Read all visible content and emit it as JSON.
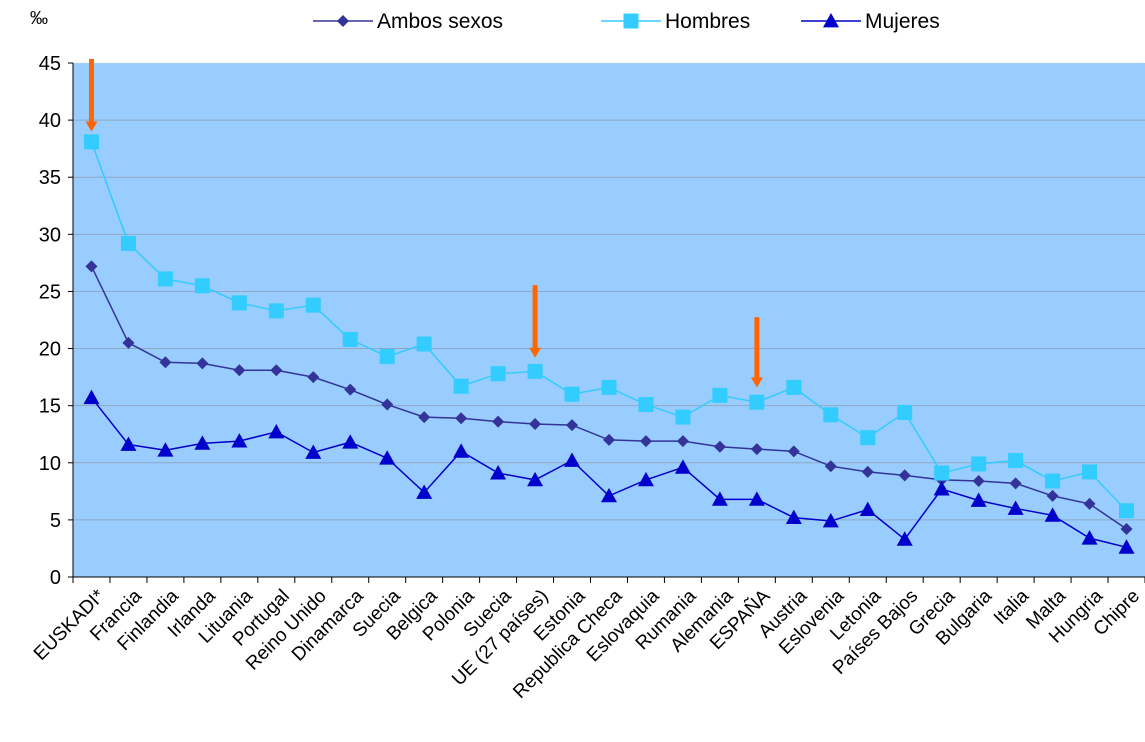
{
  "chart_data": {
    "type": "line",
    "ylabel": "‰",
    "ylim": [
      0,
      45
    ],
    "yticks": [
      0,
      5,
      10,
      15,
      20,
      25,
      30,
      35,
      40,
      45
    ],
    "grid": true,
    "legend_position": "top",
    "plot_background": "#99ccff",
    "categories": [
      "EUSKADI*",
      "Francia",
      "Finlandia",
      "Irlanda",
      "Lituania",
      "Portugal",
      "Reino Unido",
      "Dinamarca",
      "Suecia",
      "Belgica",
      "Polonia",
      "Suecia",
      "UE (27 países)",
      "Estonia",
      "Republica Checa",
      "Eslovaquia",
      "Rumania",
      "Alemania",
      "ESPAÑA",
      "Austria",
      "Eslovenia",
      "Letonia",
      "Países Bajos",
      "Grecia",
      "Bulgaria",
      "Italia",
      "Malta",
      "Hungria",
      "Chipre"
    ],
    "series": [
      {
        "name": "Ambos sexos",
        "color": "#333399",
        "marker": "diamond",
        "values": [
          27.2,
          20.5,
          18.8,
          18.7,
          18.1,
          18.1,
          17.5,
          16.4,
          15.1,
          14.0,
          13.9,
          13.6,
          13.4,
          13.3,
          12.0,
          11.9,
          11.9,
          11.4,
          11.2,
          11.0,
          9.7,
          9.2,
          8.9,
          8.5,
          8.4,
          8.2,
          7.1,
          6.4,
          4.2
        ]
      },
      {
        "name": "Hombres",
        "color": "#33ccff",
        "marker": "square",
        "values": [
          38.1,
          29.2,
          26.1,
          25.5,
          24.0,
          23.3,
          23.8,
          20.8,
          19.3,
          20.4,
          16.7,
          17.8,
          18.0,
          16.0,
          16.6,
          15.1,
          14.0,
          15.9,
          15.3,
          16.6,
          14.2,
          12.2,
          14.4,
          9.1,
          9.9,
          10.2,
          8.4,
          9.2,
          5.8
        ]
      },
      {
        "name": "Mujeres",
        "color": "#0000cc",
        "marker": "triangle",
        "values": [
          15.7,
          11.6,
          11.1,
          11.7,
          11.9,
          12.7,
          10.9,
          11.8,
          10.4,
          7.4,
          11.0,
          9.1,
          8.5,
          10.2,
          7.1,
          8.5,
          9.6,
          6.8,
          6.8,
          5.2,
          4.9,
          5.9,
          3.3,
          7.7,
          6.7,
          6.0,
          5.4,
          3.4,
          2.6
        ]
      }
    ],
    "annotations": [
      {
        "type": "arrow",
        "color": "#ff6600",
        "category_index": 0,
        "from_y": 45,
        "to_y": 39
      },
      {
        "type": "arrow",
        "color": "#ff6600",
        "category_index": 12,
        "from_y": 25.2,
        "to_y": 19.2
      },
      {
        "type": "arrow",
        "color": "#ff6600",
        "category_index": 18,
        "from_y": 22.4,
        "to_y": 16.6
      }
    ]
  }
}
